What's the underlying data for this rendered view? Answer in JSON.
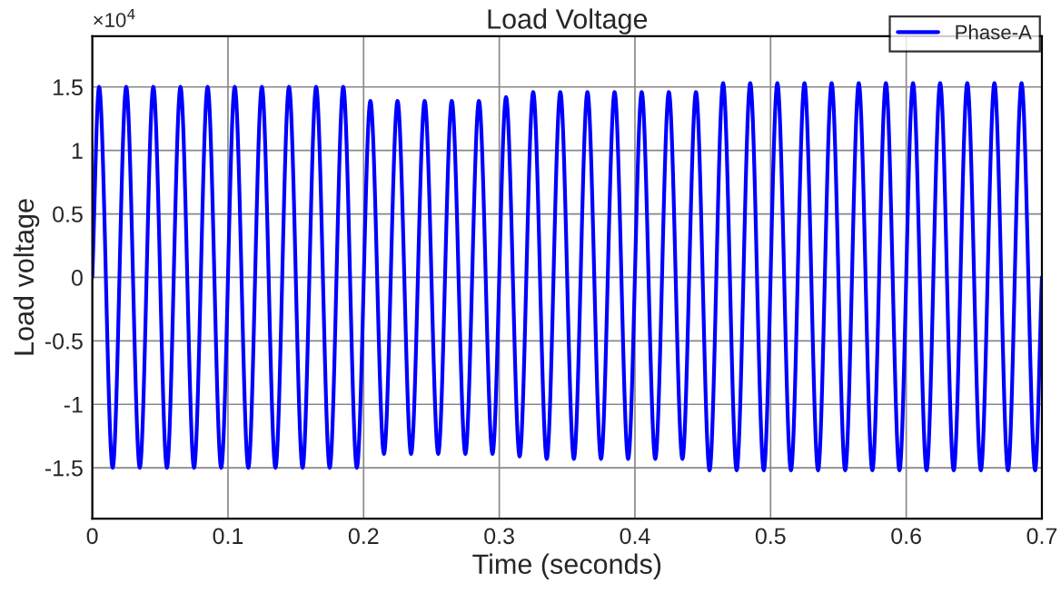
{
  "chart_data": {
    "type": "line",
    "title": "Load Voltage",
    "xlabel": "Time (seconds)",
    "ylabel": "Load voltage",
    "annotations": [
      "×10$^{4}$"
    ],
    "xlim": [
      0,
      0.7
    ],
    "xticks": [
      0,
      0.1,
      0.2,
      0.3,
      0.4,
      0.5,
      0.6,
      0.7
    ],
    "ylim": [
      -1.9,
      1.9
    ],
    "yticks": [
      -1.5,
      -1,
      -0.5,
      0,
      0.5,
      1,
      1.5
    ],
    "grid": true,
    "legend": "top right",
    "line_style": "solid",
    "marker": "none",
    "series": [
      {
        "name": "Phase-A",
        "color": "#0000ff",
        "x": [
          0,
          0.005,
          0.015,
          0.025,
          0.035,
          0.045,
          0.055,
          0.065,
          0.075,
          0.085,
          0.095,
          0.105,
          0.115,
          0.125,
          0.135,
          0.145,
          0.155,
          0.165,
          0.175,
          0.185,
          0.195,
          0.205,
          0.215,
          0.225,
          0.235,
          0.245,
          0.255,
          0.265,
          0.275,
          0.285,
          0.295,
          0.305,
          0.315,
          0.325,
          0.335,
          0.345,
          0.355,
          0.365,
          0.375,
          0.385,
          0.395,
          0.405,
          0.415,
          0.425,
          0.435,
          0.445,
          0.455,
          0.465,
          0.475,
          0.485,
          0.495,
          0.505,
          0.515,
          0.525,
          0.535,
          0.545,
          0.555,
          0.565,
          0.575,
          0.585,
          0.595,
          0.605,
          0.615,
          0.625,
          0.635,
          0.645,
          0.655,
          0.665,
          0.675,
          0.685,
          0.695,
          0.7
        ],
        "values": [
          0,
          1.5,
          -1.5,
          1.5,
          -1.5,
          1.5,
          -1.5,
          1.5,
          -1.5,
          1.5,
          -1.5,
          1.5,
          -1.5,
          1.5,
          -1.5,
          1.5,
          -1.5,
          1.5,
          -1.5,
          1.5,
          -1.5,
          1.39,
          -1.39,
          1.39,
          -1.39,
          1.39,
          -1.39,
          1.39,
          -1.39,
          1.39,
          -1.39,
          1.42,
          -1.41,
          1.46,
          -1.43,
          1.46,
          -1.43,
          1.46,
          -1.43,
          1.46,
          -1.43,
          1.46,
          -1.43,
          1.46,
          -1.43,
          1.46,
          -1.52,
          1.53,
          -1.52,
          1.53,
          -1.52,
          1.53,
          -1.52,
          1.53,
          -1.52,
          1.53,
          -1.52,
          1.53,
          -1.52,
          1.53,
          -1.52,
          1.53,
          -1.52,
          1.53,
          -1.52,
          1.53,
          -1.52,
          1.53,
          -1.52,
          1.53,
          -1.52,
          0
        ]
      }
    ]
  }
}
